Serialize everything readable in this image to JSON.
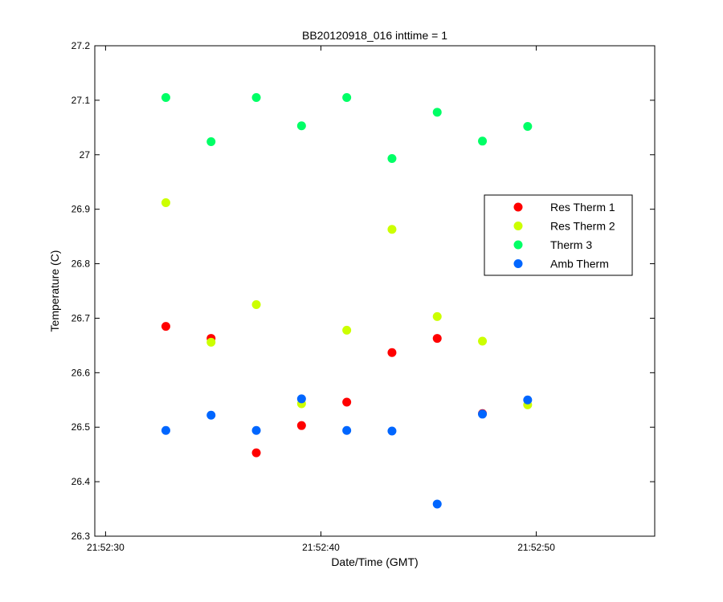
{
  "chart_data": {
    "type": "scatter",
    "title": "BB20120918_016 inttime = 1",
    "xlabel": "Date/Time (GMT)",
    "ylabel": "Temperature (C)",
    "x_unit": "seconds after 21:52:00",
    "xlim": [
      29.5,
      55.5
    ],
    "ylim": [
      26.3,
      27.2
    ],
    "x_ticks": [
      {
        "value": 30,
        "label": "21:52:30"
      },
      {
        "value": 40,
        "label": "21:52:40"
      },
      {
        "value": 50,
        "label": "21:52:50"
      }
    ],
    "y_ticks": [
      {
        "value": 26.3,
        "label": "26.3"
      },
      {
        "value": 26.4,
        "label": "26.4"
      },
      {
        "value": 26.5,
        "label": "26.5"
      },
      {
        "value": 26.6,
        "label": "26.6"
      },
      {
        "value": 26.7,
        "label": "26.7"
      },
      {
        "value": 26.8,
        "label": "26.8"
      },
      {
        "value": 26.9,
        "label": "26.9"
      },
      {
        "value": 27.0,
        "label": "27"
      },
      {
        "value": 27.1,
        "label": "27.1"
      },
      {
        "value": 27.2,
        "label": "27.2"
      }
    ],
    "grid": false,
    "legend_position": "right",
    "x": [
      32.8,
      34.9,
      37.0,
      39.1,
      41.2,
      43.3,
      45.4,
      47.5,
      49.6
    ],
    "series": [
      {
        "name": "Res Therm 1",
        "color": "#ff0000",
        "y": [
          26.685,
          26.663,
          26.453,
          26.503,
          26.546,
          26.637,
          26.663,
          26.525,
          null
        ]
      },
      {
        "name": "Res Therm 2",
        "color": "#ccff00",
        "y": [
          26.912,
          26.656,
          26.725,
          26.543,
          26.678,
          26.863,
          26.703,
          26.658,
          26.541
        ]
      },
      {
        "name": "Therm 3",
        "color": "#00ff66",
        "y": [
          27.105,
          27.024,
          27.105,
          27.053,
          27.105,
          26.993,
          27.078,
          27.025,
          27.052
        ]
      },
      {
        "name": "Amb Therm",
        "color": "#0066ff",
        "y": [
          26.494,
          26.522,
          26.494,
          26.552,
          26.494,
          26.493,
          26.359,
          26.524,
          26.55
        ]
      }
    ]
  }
}
